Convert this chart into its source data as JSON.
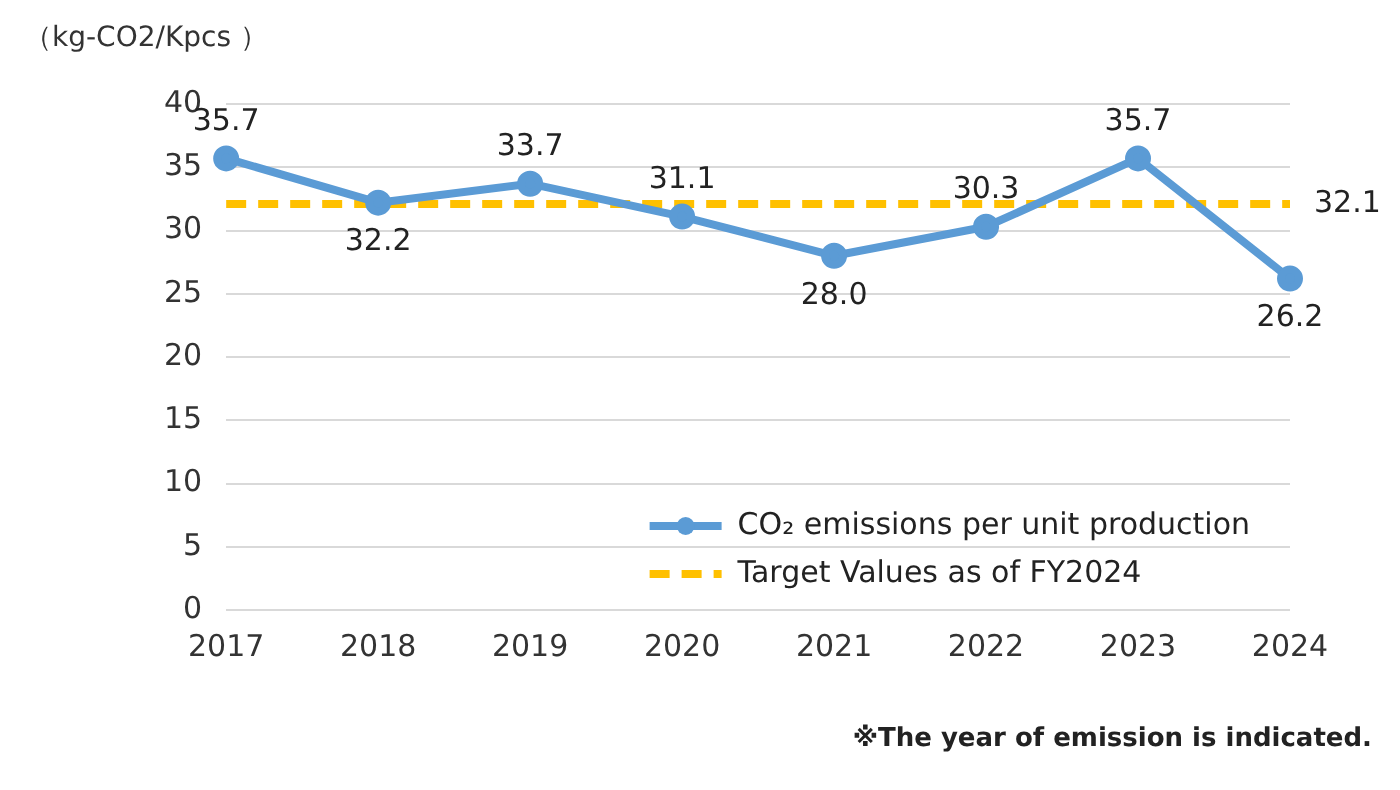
{
  "chart_data": {
    "type": "line",
    "ylabel": "（kg-CO2/Kpcs ）",
    "annotations": [
      "※The year of emission is indicated."
    ],
    "categories": [
      "2017",
      "2018",
      "2019",
      "2020",
      "2021",
      "2022",
      "2023",
      "2024"
    ],
    "series": [
      {
        "name": "CO₂ emissions per unit production",
        "color": "#5b9bd5",
        "marker": "circle",
        "line_style": "solid",
        "values": [
          35.7,
          32.2,
          33.7,
          31.1,
          28.0,
          30.3,
          35.7,
          26.2
        ],
        "value_labels": [
          "35.7",
          "32.2",
          "33.7",
          "31.1",
          "28.0",
          "30.3",
          "35.7",
          "26.2"
        ]
      },
      {
        "name": "Target Values as of FY2024",
        "color": "#ffc000",
        "marker": "none",
        "line_style": "dashed",
        "values": [
          32.1,
          32.1,
          32.1,
          32.1,
          32.1,
          32.1,
          32.1,
          32.1
        ],
        "value_labels": [
          null,
          null,
          null,
          null,
          null,
          null,
          null,
          "32.1"
        ]
      }
    ],
    "ylim": [
      0,
      40
    ],
    "yticks": [
      0,
      5,
      10,
      15,
      20,
      25,
      30,
      35,
      40
    ],
    "grid": "y",
    "legend": "bottom right"
  }
}
